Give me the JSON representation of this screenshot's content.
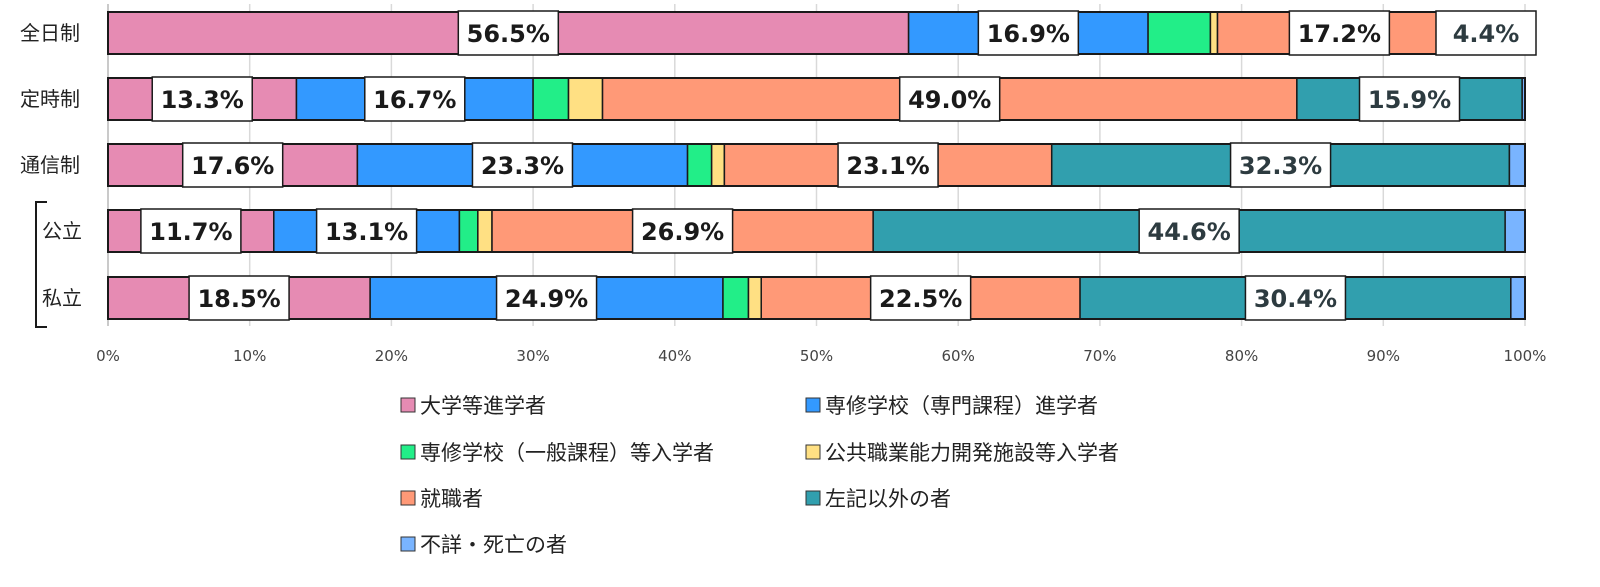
{
  "chart_data": {
    "type": "bar",
    "orientation": "horizontal",
    "stacked": true,
    "normalized": true,
    "categories": [
      "全日制",
      "定時制",
      "通信制",
      "公立",
      "私立"
    ],
    "group_bracket": [
      "公立",
      "私立"
    ],
    "xlim": [
      0,
      100
    ],
    "x_ticks": [
      "0%",
      "10%",
      "20%",
      "30%",
      "40%",
      "50%",
      "60%",
      "70%",
      "80%",
      "90%",
      "100%"
    ],
    "grid": true,
    "legend_position": "bottom",
    "series": [
      {
        "name": "大学等進学者",
        "color": "#e68bb3",
        "values": [
          56.5,
          13.3,
          17.6,
          11.7,
          18.5
        ]
      },
      {
        "name": "専修学校（専門課程）進学者",
        "color": "#3399ff",
        "values": [
          16.9,
          16.7,
          23.3,
          13.1,
          24.9
        ]
      },
      {
        "name": "専修学校（一般課程）等入学者",
        "color": "#22ee88",
        "values": [
          4.4,
          2.5,
          1.7,
          1.3,
          1.8
        ]
      },
      {
        "name": "公共職業能力開発施設等入学者",
        "color": "#ffe083",
        "values": [
          0.5,
          2.4,
          0.9,
          1.0,
          0.9
        ]
      },
      {
        "name": "就職者",
        "color": "#ff9977",
        "values": [
          17.2,
          49.0,
          23.1,
          26.9,
          22.5
        ]
      },
      {
        "name": "左記以外の者",
        "color": "#319fae",
        "values": [
          4.4,
          15.9,
          32.3,
          44.6,
          30.4
        ]
      },
      {
        "name": "不詳・死亡の者",
        "color": "#79b4ff",
        "values": [
          0.1,
          0.2,
          1.1,
          1.4,
          1.0
        ]
      }
    ],
    "data_labels": [
      [
        "56.5%",
        "16.9%",
        "",
        "",
        "17.2%",
        "4.4%",
        ""
      ],
      [
        "13.3%",
        "16.7%",
        "",
        "",
        "49.0%",
        "15.9%",
        ""
      ],
      [
        "17.6%",
        "23.3%",
        "",
        "",
        "23.1%",
        "32.3%",
        ""
      ],
      [
        "11.7%",
        "13.1%",
        "",
        "",
        "26.9%",
        "44.6%",
        ""
      ],
      [
        "18.5%",
        "24.9%",
        "",
        "",
        "22.5%",
        "30.4%",
        ""
      ]
    ]
  }
}
